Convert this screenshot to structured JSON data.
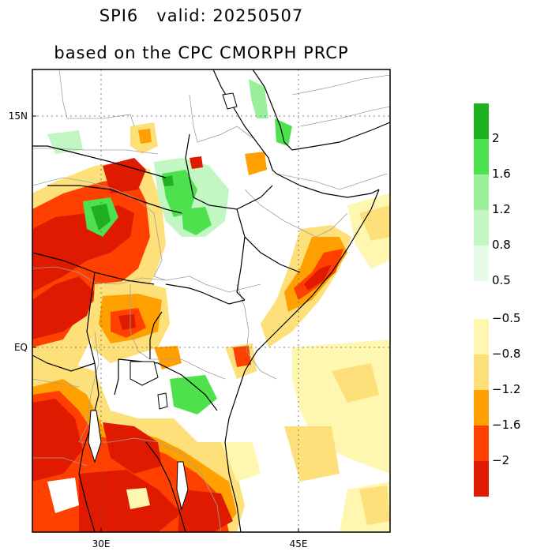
{
  "title": {
    "line1": "SPI6   valid: 20250507",
    "line2": "based on the CPC CMORPH PRCP"
  },
  "map": {
    "lat_labels": [
      "15N",
      "EQ"
    ],
    "lon_labels": [
      "30E",
      "45E"
    ],
    "lat_values": [
      15,
      0
    ],
    "lon_values": [
      30,
      45
    ],
    "extent": {
      "lon_min": 25.4,
      "lon_max": 52.5,
      "lat_min": -11.5,
      "lat_max": 18.0
    }
  },
  "colorbar": {
    "wet": [
      {
        "label": "2",
        "color": "#1fb01f"
      },
      {
        "label": "1.6",
        "color": "#4de24d"
      },
      {
        "label": "1.2",
        "color": "#9af09a"
      },
      {
        "label": "0.8",
        "color": "#c2f6c2"
      },
      {
        "label": "0.5",
        "color": "#e6fbe6"
      }
    ],
    "dry": [
      {
        "label": "−0.5",
        "color": "#fff6b0"
      },
      {
        "label": "−0.8",
        "color": "#fde07a"
      },
      {
        "label": "−1.2",
        "color": "#ffa000"
      },
      {
        "label": "−1.6",
        "color": "#ff4000"
      },
      {
        "label": "−2",
        "color": "#df1a00"
      }
    ]
  }
}
